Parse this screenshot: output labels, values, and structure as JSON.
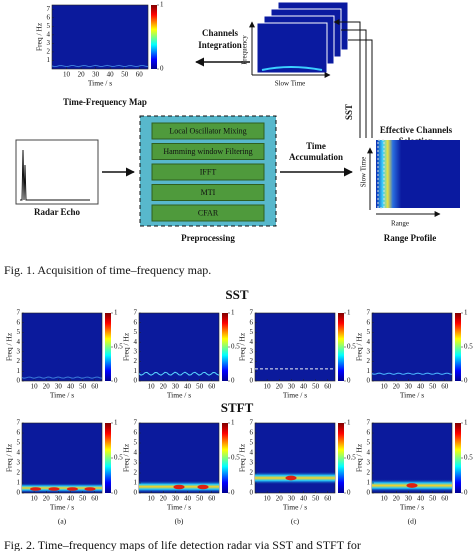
{
  "figure1": {
    "tf_map": {
      "title": "Time-Frequency Map",
      "ylabel": "Freq / Hz",
      "xlabel": "Time / s",
      "ylim": [
        0,
        7.5
      ],
      "yticks": [
        1,
        2,
        3,
        4,
        5,
        6,
        7
      ],
      "xlim": [
        0,
        66
      ],
      "xticks": [
        10,
        20,
        30,
        40,
        50,
        60
      ],
      "clim": [
        0,
        1
      ],
      "cbar_ticks": [
        0,
        1
      ]
    },
    "channels_integration": [
      "Channels",
      "Integration"
    ],
    "stack": {
      "ylabel": "Frequency",
      "xlabel": "Slow Time"
    },
    "sst": "SST",
    "effective_channels": [
      "Effective Channels",
      "Selection"
    ],
    "range_profile": {
      "ylabel": "Slow Time",
      "xlabel": "Range",
      "title": "Range Profile"
    },
    "time_accumulation": [
      "Time",
      "Accumulation"
    ],
    "radar_echo": "Radar Echo",
    "preprocessing": {
      "steps": [
        "Local Oscillator Mixing",
        "Hamming window Filtering",
        "IFFT",
        "MTI",
        "CFAR"
      ],
      "label": "Preprocessing"
    }
  },
  "caption1": "Fig. 1.    Acquisition of time–frequency map.",
  "figure2": {
    "rows": [
      "SST",
      "STFT"
    ],
    "axes": {
      "ylabel": "Freq / Hz",
      "xlabel": "Time / s",
      "ylim": [
        0,
        7
      ],
      "yticks": [
        0,
        1,
        2,
        3,
        4,
        5,
        6,
        7
      ],
      "xlim": [
        0,
        66
      ],
      "xticks": [
        10,
        20,
        30,
        40,
        50,
        60
      ],
      "clim": [
        0,
        1
      ],
      "cbar_ticks": [
        0,
        0.5,
        1
      ]
    },
    "panels": [
      "(a)",
      "(b)",
      "(c)",
      "(d)"
    ]
  },
  "caption2": "Fig. 2.    Time–frequency maps of life detection radar via SST and STFT for"
}
